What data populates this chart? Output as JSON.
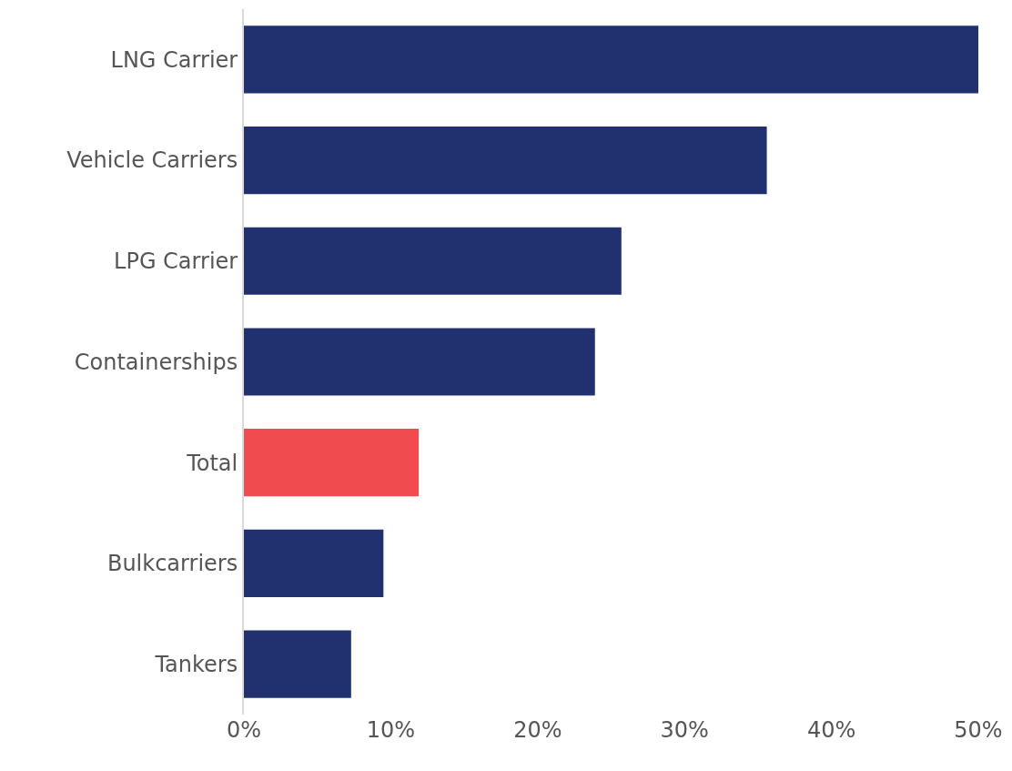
{
  "chart_data": {
    "type": "bar",
    "orientation": "horizontal",
    "categories": [
      "LNG Carrier",
      "Vehicle Carriers",
      "LPG Carrier",
      "Containerships",
      "Total",
      "Bulkcarriers",
      "Tankers"
    ],
    "values": [
      50,
      35.6,
      25.7,
      23.9,
      11.9,
      9.5,
      7.3
    ],
    "colors": [
      "#21306e",
      "#21306e",
      "#21306e",
      "#21306e",
      "#f04b4f",
      "#21306e",
      "#21306e"
    ],
    "xlim": [
      0,
      50
    ],
    "xticks": [
      {
        "value": 0,
        "label": "0%"
      },
      {
        "value": 10,
        "label": "10%"
      },
      {
        "value": 20,
        "label": "20%"
      },
      {
        "value": 30,
        "label": "30%"
      },
      {
        "value": 40,
        "label": "40%"
      },
      {
        "value": 50,
        "label": "50%"
      }
    ]
  }
}
